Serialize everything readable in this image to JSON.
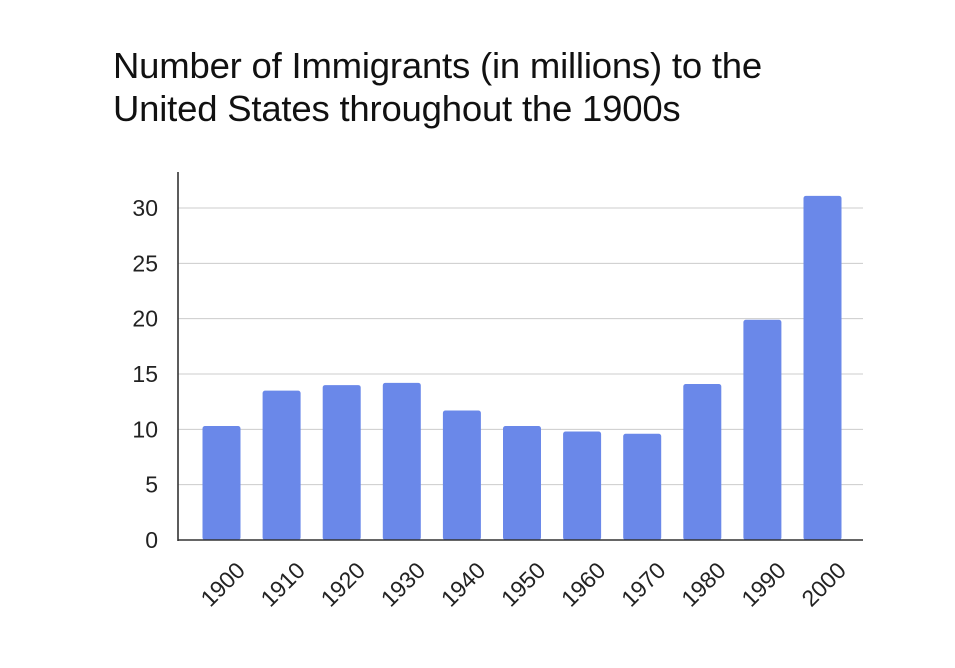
{
  "chart_data": {
    "type": "bar",
    "title": "Number of Immigrants (in millions) to the United States throughout the 1900s",
    "title_lines": [
      "Number of Immigrants (in millions) to the",
      "United States throughout the 1900s"
    ],
    "xlabel": "",
    "ylabel": "",
    "categories": [
      "1900",
      "1910",
      "1920",
      "1930",
      "1940",
      "1950",
      "1960",
      "1970",
      "1980",
      "1990",
      "2000"
    ],
    "values": [
      10.3,
      13.5,
      14.0,
      14.2,
      11.7,
      10.3,
      9.8,
      9.6,
      14.1,
      19.9,
      31.1
    ],
    "ylim": [
      0,
      33
    ],
    "yticks": [
      "0",
      "5",
      "10",
      "15",
      "20",
      "25",
      "30"
    ],
    "grid": true,
    "legend": "none",
    "bar_color": "#6a88e9",
    "grid_color": "#cccccc",
    "axis_color": "#333333"
  }
}
